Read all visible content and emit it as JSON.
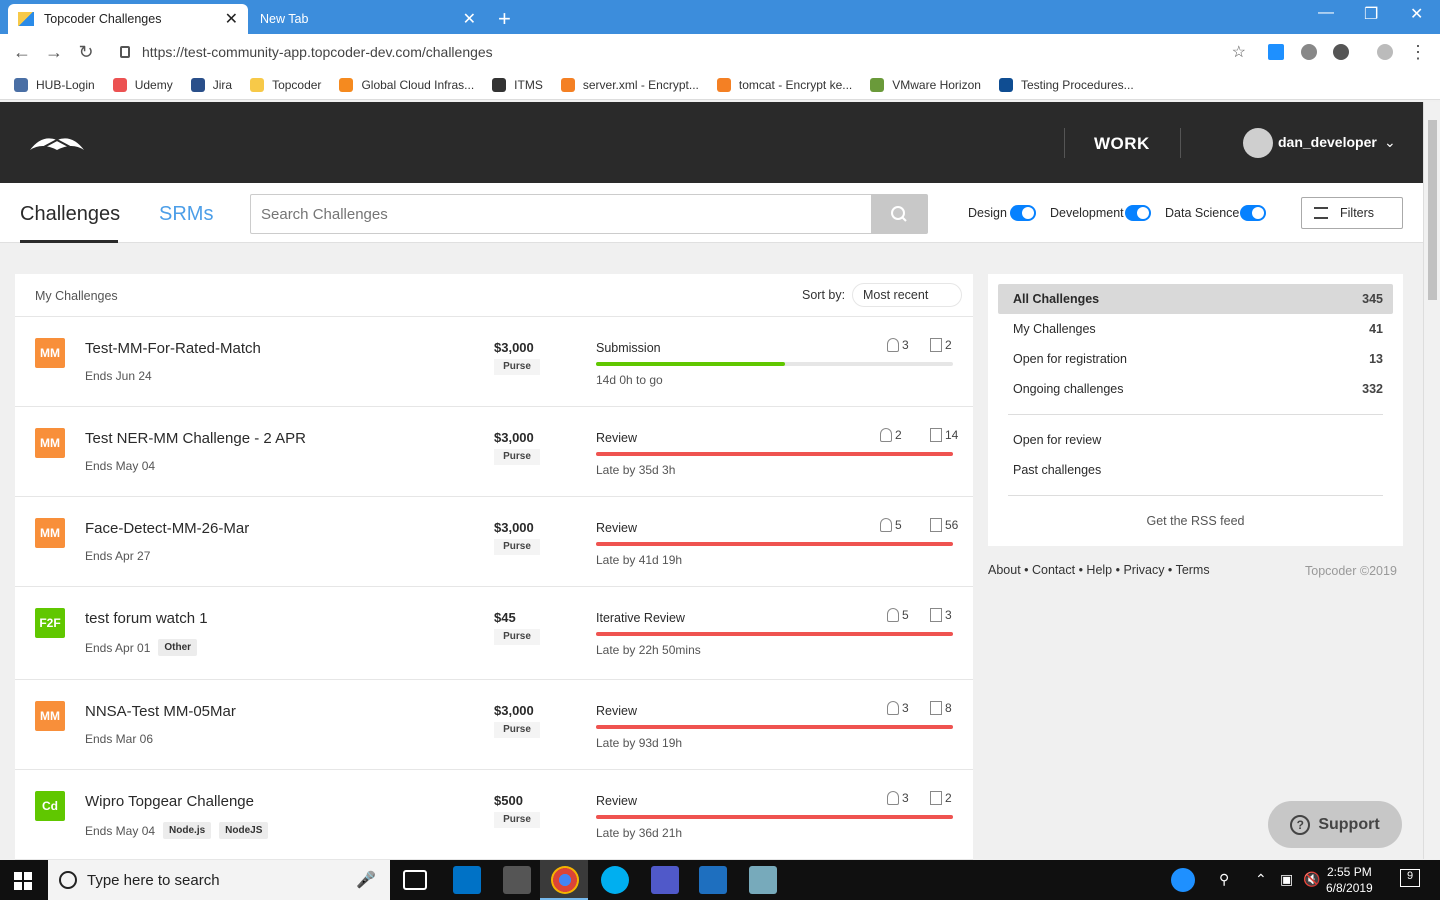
{
  "browser": {
    "tabs": [
      {
        "title": "Topcoder Challenges",
        "close": "✕"
      },
      {
        "title": "New Tab",
        "close": "✕"
      }
    ],
    "new_tab": "+",
    "url": "https://test-community-app.topcoder-dev.com/challenges",
    "bookmarks": [
      {
        "label": "HUB-Login",
        "icon": "lock-icon",
        "color": "#4a6fa5"
      },
      {
        "label": "Udemy",
        "icon": "udemy-icon",
        "color": "#ec5252"
      },
      {
        "label": "Jira",
        "icon": "jira-icon",
        "color": "#2a4f8a"
      },
      {
        "label": "Topcoder",
        "icon": "topcoder-icon",
        "color": "#f7c948"
      },
      {
        "label": "Global Cloud Infras...",
        "icon": "cube-icon",
        "color": "#f58a1f"
      },
      {
        "label": "ITMS",
        "icon": "globe-icon",
        "color": "#333333"
      },
      {
        "label": "server.xml - Encrypt...",
        "icon": "stackoverflow-icon",
        "color": "#f48024"
      },
      {
        "label": "tomcat - Encrypt ke...",
        "icon": "stackoverflow-icon",
        "color": "#f48024"
      },
      {
        "label": "VMware Horizon",
        "icon": "vmware-icon",
        "color": "#6a9a3a"
      },
      {
        "label": "Testing Procedures...",
        "icon": "yale-icon",
        "color": "#0f4d92"
      }
    ]
  },
  "header": {
    "work": "WORK",
    "username": "dan_developer"
  },
  "subheader": {
    "tab_challenges": "Challenges",
    "tab_srms": "SRMs",
    "search_placeholder": "Search Challenges",
    "toggles": [
      {
        "label": "Design",
        "on": true
      },
      {
        "label": "Development",
        "on": true
      },
      {
        "label": "Data Science",
        "on": true
      }
    ],
    "filters_label": "Filters",
    "accent": "#0681ff"
  },
  "list": {
    "title": "My Challenges",
    "sort_label": "Sort by:",
    "sort_value": "Most recent",
    "rows": [
      {
        "badge": "MM",
        "name": "Test-MM-For-Rated-Match",
        "ends": "Ends Jun 24",
        "tags": [],
        "prize": "$3,000",
        "purse": "Purse",
        "phase": "Submission",
        "progress": 0.53,
        "status_color": "#60c700",
        "time": "14d 0h to go",
        "registrants": "3",
        "submissions": "2"
      },
      {
        "badge": "MM",
        "name": "Test NER-MM Challenge - 2 APR",
        "ends": "Ends May 04",
        "tags": [],
        "prize": "$3,000",
        "purse": "Purse",
        "phase": "Review",
        "progress": 1.0,
        "status_color": "#ef5350",
        "time": "Late by 35d 3h",
        "registrants": "2",
        "submissions": "14"
      },
      {
        "badge": "MM",
        "name": "Face-Detect-MM-26-Mar",
        "ends": "Ends Apr 27",
        "tags": [],
        "prize": "$3,000",
        "purse": "Purse",
        "phase": "Review",
        "progress": 1.0,
        "status_color": "#ef5350",
        "time": "Late by 41d 19h",
        "registrants": "5",
        "submissions": "56"
      },
      {
        "badge": "F2F",
        "name": "test forum watch 1",
        "ends": "Ends Apr 01",
        "tags": [
          "Other"
        ],
        "prize": "$45",
        "purse": "Purse",
        "phase": "Iterative Review",
        "progress": 1.0,
        "status_color": "#ef5350",
        "time": "Late by 22h 50mins",
        "registrants": "5",
        "submissions": "3"
      },
      {
        "badge": "MM",
        "name": "NNSA-Test MM-05Mar",
        "ends": "Ends Mar 06",
        "tags": [],
        "prize": "$3,000",
        "purse": "Purse",
        "phase": "Review",
        "progress": 1.0,
        "status_color": "#ef5350",
        "time": "Late by 93d 19h",
        "registrants": "3",
        "submissions": "8"
      },
      {
        "badge": "Cd",
        "name": "Wipro Topgear Challenge",
        "ends": "Ends May 04",
        "tags": [
          "Node.js",
          "NodeJS"
        ],
        "prize": "$500",
        "purse": "Purse",
        "phase": "Review",
        "progress": 1.0,
        "status_color": "#ef5350",
        "time": "Late by 36d 21h",
        "registrants": "3",
        "submissions": "2"
      }
    ]
  },
  "sidebar": {
    "items": [
      {
        "label": "All Challenges",
        "count": "345"
      },
      {
        "label": "My Challenges",
        "count": "41"
      },
      {
        "label": "Open for registration",
        "count": "13"
      },
      {
        "label": "Ongoing challenges",
        "count": "332"
      }
    ],
    "secondary": [
      {
        "label": "Open for review"
      },
      {
        "label": "Past challenges"
      }
    ],
    "rss": "Get the RSS feed"
  },
  "footer": {
    "links": [
      "About",
      "Contact",
      "Help",
      "Privacy",
      "Terms"
    ],
    "separator": " • ",
    "copyright": "Topcoder ©2019"
  },
  "support": {
    "label": "Support",
    "icon": "?"
  },
  "taskbar": {
    "search_placeholder": "Type here to search",
    "time": "2:55 PM",
    "date": "6/8/2019",
    "notifications": "9"
  }
}
